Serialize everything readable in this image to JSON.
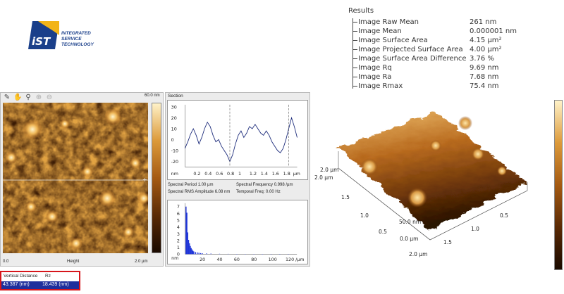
{
  "logo": {
    "letters": "iST",
    "line1": "INTEGRATED",
    "line2": "SERVICE",
    "line3": "TECHNOLOGY"
  },
  "results": {
    "title": "Results",
    "rows": [
      {
        "label": "Image Raw Mean",
        "value": "261 nm"
      },
      {
        "label": "Image Mean",
        "value": "0.000001 nm"
      },
      {
        "label": "Image Surface Area",
        "value": "4.15 µm²"
      },
      {
        "label": "Image Projected Surface Area",
        "value": "4.00 µm²"
      },
      {
        "label": "Image Surface Area Difference",
        "value": "3.76 %"
      },
      {
        "label": "Image Rq",
        "value": "9.69 nm"
      },
      {
        "label": "Image Ra",
        "value": "7.68 nm"
      },
      {
        "label": "Image Rmax",
        "value": "75.4 nm"
      }
    ]
  },
  "height_image": {
    "zmax": "60.0 nm",
    "x_start": "0.0",
    "channel": "Height",
    "x_end": "2.0 µm"
  },
  "measurement": {
    "header_left": "Vertical Distance",
    "header_right": "Rz",
    "value_left": "43.387 (nm)",
    "value_right": "18.439 (nm)"
  },
  "section": {
    "title": "Section",
    "spectral_period": "Spectral Period 1.00 µm",
    "spectral_frequency": "Spectral Frequency 0.998 /µm",
    "spectral_rms": "Spectral RMS Amplitude 6.08 nm",
    "temporal_freq": "Temporal Freq: 0.00 Hz"
  },
  "view3d": {
    "labels": {
      "y_top": "2.0 µm",
      "y_top2": "2.0 µm",
      "y_15": "1.5",
      "y_10": "1.0",
      "y_05": "0.5",
      "y_00": "0.0 µm",
      "x_50": "50.0 nm",
      "x_05": "0.5",
      "x_10": "1.0",
      "x_15": "1.5",
      "x_20": "2.0 µm"
    }
  },
  "chart_data": [
    {
      "type": "line",
      "title": "Section",
      "xlabel": "µm",
      "ylabel": "nm",
      "x_ticks": [
        "0.2",
        "0.4",
        "0.6",
        "0.8",
        "1",
        "1.2",
        "1.4",
        "1.6",
        "1.8"
      ],
      "y_ticks": [
        "30",
        "20",
        "10",
        "0",
        "-10",
        "-20"
      ],
      "xlim": [
        0,
        2.0
      ],
      "ylim": [
        -25,
        32
      ],
      "x": [
        0.0,
        0.05,
        0.1,
        0.15,
        0.2,
        0.25,
        0.3,
        0.35,
        0.4,
        0.45,
        0.5,
        0.55,
        0.6,
        0.65,
        0.7,
        0.75,
        0.8,
        0.85,
        0.9,
        0.95,
        1.0,
        1.05,
        1.1,
        1.15,
        1.2,
        1.25,
        1.3,
        1.35,
        1.4,
        1.45,
        1.5,
        1.55,
        1.6,
        1.65,
        1.7,
        1.75,
        1.8,
        1.85,
        1.9,
        1.95,
        2.0
      ],
      "y": [
        -8,
        -2,
        5,
        10,
        4,
        -4,
        2,
        10,
        16,
        12,
        4,
        -2,
        0,
        -6,
        -10,
        -14,
        -20,
        -14,
        -4,
        4,
        8,
        2,
        6,
        12,
        10,
        14,
        10,
        6,
        4,
        8,
        4,
        -2,
        -6,
        -10,
        -12,
        -8,
        0,
        10,
        20,
        12,
        2
      ],
      "markers_x": [
        0.8,
        1.85
      ]
    },
    {
      "type": "bar",
      "title": "",
      "xlabel": "/µm",
      "ylabel": "nm",
      "x_ticks": [
        "20",
        "40",
        "60",
        "80",
        "100",
        "120"
      ],
      "y_ticks": [
        "7",
        "6",
        "5",
        "4",
        "3",
        "2",
        "1",
        "0"
      ],
      "xlim": [
        0,
        130
      ],
      "ylim": [
        0,
        7.5
      ],
      "x": [
        1,
        2,
        3,
        4,
        5,
        6,
        7,
        8,
        9,
        10,
        12,
        14,
        16,
        18,
        20,
        25,
        30,
        40,
        50,
        60,
        70,
        80,
        90,
        100,
        110,
        120
      ],
      "values": [
        7.0,
        6.1,
        3.2,
        2.1,
        1.6,
        1.2,
        0.9,
        0.7,
        0.5,
        0.4,
        0.3,
        0.25,
        0.2,
        0.15,
        0.12,
        0.1,
        0.08,
        0.05,
        0.04,
        0.03,
        0.02,
        0.02,
        0.02,
        0.01,
        0.01,
        0.01
      ]
    }
  ]
}
